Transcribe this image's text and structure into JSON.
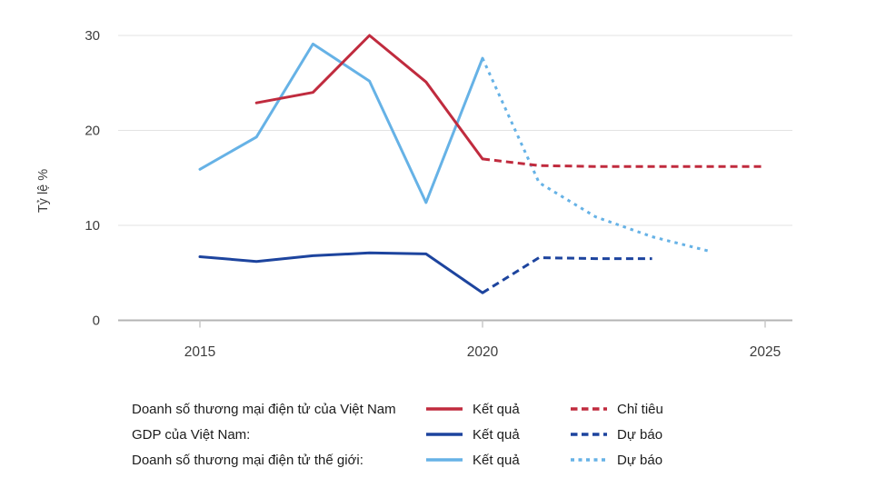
{
  "chart_data": {
    "type": "line",
    "title": "",
    "xlabel": "",
    "ylabel": "Tỷ lệ %",
    "x_ticks": [
      2015,
      2020,
      2025
    ],
    "y_ticks": [
      0,
      10,
      20,
      30
    ],
    "xlim": [
      2013.5,
      2025.5
    ],
    "ylim": [
      0,
      30
    ],
    "grid": "horizontal",
    "grid_color": "#e3e3e3",
    "axis_color": "#b4b4b4",
    "tick_color": "#c9c9c9",
    "series": [
      {
        "id": "world-ecom-actual",
        "name": "Doanh số thương mại điện tử thế giới — Kết quả",
        "color": "#66b2e6",
        "style": "solid",
        "points": [
          [
            2015,
            15.9
          ],
          [
            2016,
            19.3
          ],
          [
            2017,
            29.1
          ],
          [
            2018,
            25.2
          ],
          [
            2019,
            12.4
          ],
          [
            2020,
            27.6
          ]
        ]
      },
      {
        "id": "world-ecom-forecast",
        "name": "Doanh số thương mại điện tử thế giới — Dự báo",
        "color": "#66b2e6",
        "style": "dotted",
        "points": [
          [
            2020,
            27.6
          ],
          [
            2021,
            14.5
          ],
          [
            2022,
            10.9
          ],
          [
            2023,
            8.8
          ],
          [
            2024,
            7.3
          ]
        ]
      },
      {
        "id": "gdp-actual",
        "name": "GDP của Việt Nam — Kết quả",
        "color": "#1d449e",
        "style": "solid",
        "points": [
          [
            2015,
            6.7
          ],
          [
            2016,
            6.2
          ],
          [
            2017,
            6.8
          ],
          [
            2018,
            7.1
          ],
          [
            2019,
            7.0
          ],
          [
            2020,
            2.9
          ]
        ]
      },
      {
        "id": "gdp-forecast",
        "name": "GDP của Việt Nam — Dự báo",
        "color": "#1d449e",
        "style": "dashed",
        "points": [
          [
            2020,
            2.9
          ],
          [
            2021,
            6.6
          ],
          [
            2022,
            6.5
          ],
          [
            2023,
            6.5
          ]
        ]
      },
      {
        "id": "vn-ecom-actual",
        "name": "Doanh số thương mại điện tử của Việt Nam — Kết quả",
        "color": "#c02b3e",
        "style": "solid",
        "points": [
          [
            2016,
            22.9
          ],
          [
            2017,
            24.0
          ],
          [
            2018,
            30.0
          ],
          [
            2019,
            25.1
          ],
          [
            2020,
            17.0
          ]
        ]
      },
      {
        "id": "vn-ecom-target",
        "name": "Doanh số thương mại điện tử của Việt Nam — Chỉ tiêu",
        "color": "#c02b3e",
        "style": "dashed",
        "points": [
          [
            2020,
            17.0
          ],
          [
            2021,
            16.3
          ],
          [
            2022,
            16.2
          ],
          [
            2023,
            16.2
          ],
          [
            2024,
            16.2
          ],
          [
            2025,
            16.2
          ]
        ]
      }
    ]
  },
  "axes": {
    "x_labels": [
      "2015",
      "2020",
      "2025"
    ],
    "y_labels": [
      "0",
      "10",
      "20",
      "30"
    ]
  },
  "legend": {
    "rows": [
      {
        "label": "Doanh số thương mại điện tử của Việt Nam",
        "solid_label": "Kết quả",
        "dashed_label": "Chỉ tiêu",
        "color": "#c02b3e",
        "dash": "dash"
      },
      {
        "label": "GDP của Việt Nam:",
        "solid_label": "Kết quả",
        "dashed_label": "Dự báo",
        "color": "#1d449e",
        "dash": "dash"
      },
      {
        "label": "Doanh số thương mại điện tử thế giới:",
        "solid_label": "Kết quả",
        "dashed_label": "Dự báo",
        "color": "#66b2e6",
        "dash": "dot"
      }
    ]
  }
}
